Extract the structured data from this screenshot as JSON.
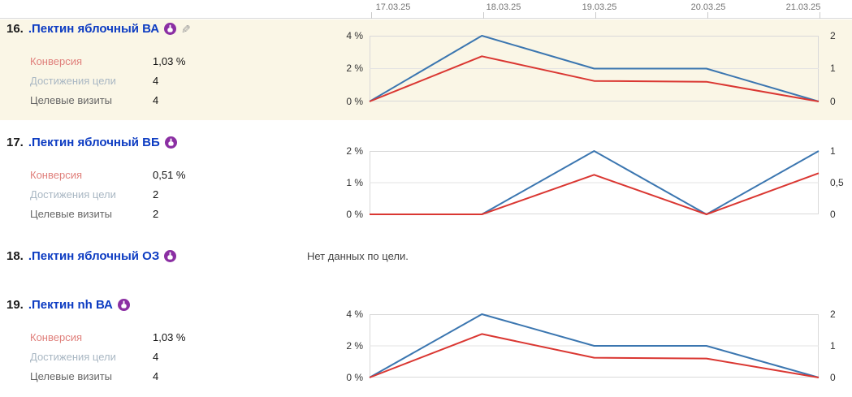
{
  "colors": {
    "highlight_bg": "#faf6e6",
    "link_blue": "#0d3cc2",
    "blue_line": "#3b76b0",
    "red_line": "#da3732",
    "conversion_label": "#e0807c",
    "goal_reaches_label": "#a9b7c3",
    "target_visits_label": "#666666",
    "icon_purple": "#8b2fa3",
    "pencil_gray": "#9a9a9a",
    "date_text": "#757575",
    "axis_text": "#333333",
    "grid": "#d9d9d9",
    "grid_mid": "#e3e3e3",
    "value_text": "#111111",
    "no_data_text": "#444444"
  },
  "header": {
    "dates": [
      "17.03.25",
      "18.03.25",
      "19.03.25",
      "20.03.25",
      "21.03.25"
    ]
  },
  "rows": [
    {
      "number": "16.",
      "title": ".Пектин яблочный ВА",
      "metrics": [
        {
          "label": "Конверсия",
          "value": "1,03 %"
        },
        {
          "label": "Достижения цели",
          "value": "4"
        },
        {
          "label": "Целевые визиты",
          "value": "4"
        }
      ]
    },
    {
      "number": "17.",
      "title": ".Пектин яблочный ВБ",
      "metrics": [
        {
          "label": "Конверсия",
          "value": "0,51 %"
        },
        {
          "label": "Достижения цели",
          "value": "2"
        },
        {
          "label": "Целевые визиты",
          "value": "2"
        }
      ]
    },
    {
      "number": "18.",
      "title": ".Пектин яблочный ОЗ",
      "no_data": "Нет данных по цели."
    },
    {
      "number": "19.",
      "title": ".Пектин nh ВА",
      "metrics": [
        {
          "label": "Конверсия",
          "value": "1,03 %"
        },
        {
          "label": "Достижения цели",
          "value": "4"
        },
        {
          "label": "Целевые визиты",
          "value": "4"
        }
      ]
    }
  ],
  "chart_data": [
    {
      "type": "line",
      "row_number": "16",
      "x": [
        "17.03.25",
        "18.03.25",
        "19.03.25",
        "20.03.25",
        "21.03.25"
      ],
      "left_axis": {
        "label": "Конверсия",
        "range": [
          0,
          4
        ],
        "ticks": [
          "4 %",
          "2 %",
          "0 %"
        ]
      },
      "right_axis": {
        "label": "Достижения цели",
        "range": [
          0,
          2
        ],
        "ticks": [
          "2",
          "1",
          "0"
        ]
      },
      "grid": true,
      "legend": "none",
      "series": [
        {
          "name": "Достижения цели",
          "color": "blue",
          "axis": "right",
          "values": [
            0,
            2,
            1,
            1,
            0
          ]
        },
        {
          "name": "Конверсия",
          "color": "red",
          "axis": "left",
          "values": [
            0,
            2.75,
            1.25,
            1.2,
            0
          ]
        }
      ]
    },
    {
      "type": "line",
      "row_number": "17",
      "x": [
        "17.03.25",
        "18.03.25",
        "19.03.25",
        "20.03.25",
        "21.03.25"
      ],
      "left_axis": {
        "label": "Конверсия",
        "range": [
          0,
          2
        ],
        "ticks": [
          "2 %",
          "1 %",
          "0 %"
        ]
      },
      "right_axis": {
        "label": "Достижения цели",
        "range": [
          0,
          1
        ],
        "ticks": [
          "1",
          "0,5",
          "0"
        ]
      },
      "grid": true,
      "legend": "none",
      "series": [
        {
          "name": "Достижения цели",
          "color": "blue",
          "axis": "right",
          "values": [
            0,
            0,
            1,
            0,
            1
          ]
        },
        {
          "name": "Конверсия",
          "color": "red",
          "axis": "left",
          "values": [
            0,
            0,
            1.25,
            0,
            1.3
          ]
        }
      ]
    },
    {
      "type": "line",
      "row_number": "19",
      "x": [
        "17.03.25",
        "18.03.25",
        "19.03.25",
        "20.03.25",
        "21.03.25"
      ],
      "left_axis": {
        "label": "Конверсия",
        "range": [
          0,
          4
        ],
        "ticks": [
          "4 %",
          "2 %",
          "0 %"
        ]
      },
      "right_axis": {
        "label": "Достижения цели",
        "range": [
          0,
          2
        ],
        "ticks": [
          "2",
          "1",
          "0"
        ]
      },
      "grid": true,
      "legend": "none",
      "series": [
        {
          "name": "Достижения цели",
          "color": "blue",
          "axis": "right",
          "values": [
            0,
            2,
            1,
            1,
            0
          ]
        },
        {
          "name": "Конверсия",
          "color": "red",
          "axis": "left",
          "values": [
            0,
            2.75,
            1.25,
            1.2,
            0
          ]
        }
      ]
    }
  ]
}
